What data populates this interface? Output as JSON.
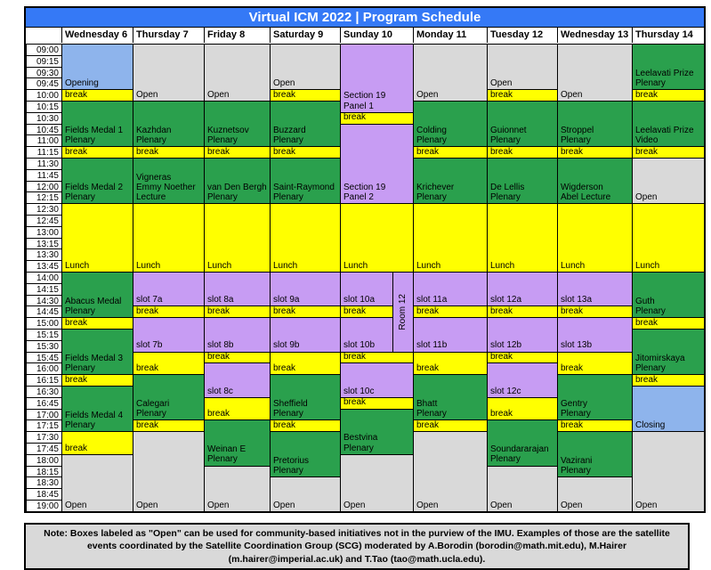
{
  "title": "Virtual ICM 2022 | Program Schedule",
  "palette": {
    "title_bar": "#3579f6",
    "blue": "#8eb4ec",
    "green": "#2aa04d",
    "yellow": "#ffff00",
    "purple": "#c79cf3",
    "gray": "#d9d9d9",
    "note_bg": "#d9d9d9",
    "border": "#000000"
  },
  "days": [
    "Wednesday 6",
    "Thursday 7",
    "Friday 8",
    "Saturday 9",
    "Sunday 10",
    "Monday 11",
    "Tuesday 12",
    "Wednesday 13",
    "Thursday 14"
  ],
  "times": [
    "09:00",
    "09:15",
    "09:30",
    "09:45",
    "10:00",
    "10:15",
    "10:30",
    "10:45",
    "11:00",
    "11:15",
    "11:30",
    "11:45",
    "12:00",
    "12:15",
    "12:30",
    "12:45",
    "13:00",
    "13:15",
    "13:30",
    "13:45",
    "14:00",
    "14:15",
    "14:30",
    "14:45",
    "15:00",
    "15:15",
    "15:30",
    "15:45",
    "16:00",
    "16:15",
    "16:30",
    "16:45",
    "17:00",
    "17:15",
    "17:30",
    "17:45",
    "18:00",
    "18:15",
    "18:30",
    "18:45",
    "19:00"
  ],
  "events": [
    {
      "day": 0,
      "start": "09:00",
      "end": "10:00",
      "color": "blue",
      "label": "Opening"
    },
    {
      "day": 0,
      "start": "10:00",
      "end": "10:15",
      "color": "yellow",
      "label": "break"
    },
    {
      "day": 0,
      "start": "10:15",
      "end": "11:15",
      "color": "green",
      "label": "Fields Medal 1\nPlenary"
    },
    {
      "day": 0,
      "start": "11:15",
      "end": "11:30",
      "color": "yellow",
      "label": "break"
    },
    {
      "day": 0,
      "start": "11:30",
      "end": "12:30",
      "color": "green",
      "label": "Fields Medal 2\nPlenary"
    },
    {
      "day": 0,
      "start": "12:30",
      "end": "14:00",
      "color": "yellow",
      "label": "Lunch"
    },
    {
      "day": 0,
      "start": "14:00",
      "end": "15:00",
      "color": "green",
      "label": "Abacus Medal\nPlenary"
    },
    {
      "day": 0,
      "start": "15:00",
      "end": "15:15",
      "color": "yellow",
      "label": "break"
    },
    {
      "day": 0,
      "start": "15:15",
      "end": "16:15",
      "color": "green",
      "label": "Fields Medal 3\nPlenary"
    },
    {
      "day": 0,
      "start": "16:15",
      "end": "16:30",
      "color": "yellow",
      "label": "break"
    },
    {
      "day": 0,
      "start": "16:30",
      "end": "17:30",
      "color": "green",
      "label": "Fields Medal 4\nPlenary"
    },
    {
      "day": 0,
      "start": "17:30",
      "end": "18:00",
      "color": "yellow",
      "label": "break"
    },
    {
      "day": 0,
      "start": "18:00",
      "end": "19:15",
      "color": "gray",
      "label": "Open"
    },
    {
      "day": 1,
      "start": "09:00",
      "end": "10:15",
      "color": "gray",
      "label": "Open"
    },
    {
      "day": 1,
      "start": "10:15",
      "end": "11:15",
      "color": "green",
      "label": "Kazhdan\nPlenary"
    },
    {
      "day": 1,
      "start": "11:15",
      "end": "11:30",
      "color": "yellow",
      "label": "break"
    },
    {
      "day": 1,
      "start": "11:30",
      "end": "12:30",
      "color": "green",
      "label": "Vigneras\nEmmy Noether\nLecture"
    },
    {
      "day": 1,
      "start": "12:30",
      "end": "14:00",
      "color": "yellow",
      "label": "Lunch"
    },
    {
      "day": 1,
      "start": "14:00",
      "end": "14:45",
      "color": "purple",
      "label": "slot 7a"
    },
    {
      "day": 1,
      "start": "14:45",
      "end": "15:00",
      "color": "yellow",
      "label": "break"
    },
    {
      "day": 1,
      "start": "15:00",
      "end": "15:45",
      "color": "purple",
      "label": "slot 7b"
    },
    {
      "day": 1,
      "start": "15:45",
      "end": "16:15",
      "color": "yellow",
      "label": "break"
    },
    {
      "day": 1,
      "start": "16:15",
      "end": "17:15",
      "color": "green",
      "label": "Calegari\nPlenary"
    },
    {
      "day": 1,
      "start": "17:15",
      "end": "17:30",
      "color": "yellow",
      "label": "break"
    },
    {
      "day": 1,
      "start": "17:30",
      "end": "19:15",
      "color": "gray",
      "label": "Open"
    },
    {
      "day": 2,
      "start": "09:00",
      "end": "10:15",
      "color": "gray",
      "label": "Open"
    },
    {
      "day": 2,
      "start": "10:15",
      "end": "11:15",
      "color": "green",
      "label": "Kuznetsov\nPlenary"
    },
    {
      "day": 2,
      "start": "11:15",
      "end": "11:30",
      "color": "yellow",
      "label": "break"
    },
    {
      "day": 2,
      "start": "11:30",
      "end": "12:30",
      "color": "green",
      "label": "van Den Bergh\nPlenary"
    },
    {
      "day": 2,
      "start": "12:30",
      "end": "14:00",
      "color": "yellow",
      "label": "Lunch"
    },
    {
      "day": 2,
      "start": "14:00",
      "end": "14:45",
      "color": "purple",
      "label": "slot 8a"
    },
    {
      "day": 2,
      "start": "14:45",
      "end": "15:00",
      "color": "yellow",
      "label": "break"
    },
    {
      "day": 2,
      "start": "15:00",
      "end": "15:45",
      "color": "purple",
      "label": "slot 8b"
    },
    {
      "day": 2,
      "start": "15:45",
      "end": "16:00",
      "color": "yellow",
      "label": "break"
    },
    {
      "day": 2,
      "start": "16:00",
      "end": "16:45",
      "color": "purple",
      "label": "slot 8c"
    },
    {
      "day": 2,
      "start": "16:45",
      "end": "17:15",
      "color": "yellow",
      "label": "break"
    },
    {
      "day": 2,
      "start": "17:15",
      "end": "18:15",
      "color": "green",
      "label": "Weinan E\nPlenary"
    },
    {
      "day": 2,
      "start": "18:15",
      "end": "19:15",
      "color": "gray",
      "label": "Open"
    },
    {
      "day": 3,
      "start": "09:00",
      "end": "10:00",
      "color": "gray",
      "label": "Open"
    },
    {
      "day": 3,
      "start": "10:00",
      "end": "10:15",
      "color": "yellow",
      "label": "break"
    },
    {
      "day": 3,
      "start": "10:15",
      "end": "11:15",
      "color": "green",
      "label": "Buzzard\nPlenary"
    },
    {
      "day": 3,
      "start": "11:15",
      "end": "11:30",
      "color": "yellow",
      "label": "break"
    },
    {
      "day": 3,
      "start": "11:30",
      "end": "12:30",
      "color": "green",
      "label": "Saint-Raymond\nPlenary"
    },
    {
      "day": 3,
      "start": "12:30",
      "end": "14:00",
      "color": "yellow",
      "label": "Lunch"
    },
    {
      "day": 3,
      "start": "14:00",
      "end": "14:45",
      "color": "purple",
      "label": "slot 9a"
    },
    {
      "day": 3,
      "start": "14:45",
      "end": "15:00",
      "color": "yellow",
      "label": "break"
    },
    {
      "day": 3,
      "start": "15:00",
      "end": "15:45",
      "color": "purple",
      "label": "slot 9b"
    },
    {
      "day": 3,
      "start": "15:45",
      "end": "16:15",
      "color": "yellow",
      "label": "break"
    },
    {
      "day": 3,
      "start": "16:15",
      "end": "17:15",
      "color": "green",
      "label": "Sheffield\nPlenary"
    },
    {
      "day": 3,
      "start": "17:15",
      "end": "17:30",
      "color": "yellow",
      "label": "break"
    },
    {
      "day": 3,
      "start": "17:30",
      "end": "18:30",
      "color": "green",
      "label": "Pretorius\nPlenary"
    },
    {
      "day": 3,
      "start": "18:30",
      "end": "19:15",
      "color": "gray",
      "label": "Open"
    },
    {
      "day": 4,
      "start": "09:00",
      "end": "10:30",
      "color": "purple",
      "label": "Section 19\nPanel 1"
    },
    {
      "day": 4,
      "start": "10:30",
      "end": "10:45",
      "color": "yellow",
      "label": "break"
    },
    {
      "day": 4,
      "start": "10:45",
      "end": "12:30",
      "color": "purple",
      "label": "Section 19\nPanel 2"
    },
    {
      "day": 4,
      "start": "12:30",
      "end": "14:00",
      "color": "yellow",
      "label": "Lunch"
    },
    {
      "day": 4,
      "start": "14:00",
      "end": "14:45",
      "color": "purple",
      "label": "slot 10a",
      "sub": "left"
    },
    {
      "day": 4,
      "start": "14:45",
      "end": "15:00",
      "color": "yellow",
      "label": "break",
      "sub": "left"
    },
    {
      "day": 4,
      "start": "15:00",
      "end": "15:45",
      "color": "purple",
      "label": "slot 10b",
      "sub": "left"
    },
    {
      "day": 4,
      "start": "14:00",
      "end": "15:45",
      "color": "purple",
      "label": "Room 12",
      "sub": "right",
      "vertical": true
    },
    {
      "day": 4,
      "start": "15:45",
      "end": "16:00",
      "color": "yellow",
      "label": "break"
    },
    {
      "day": 4,
      "start": "16:00",
      "end": "16:45",
      "color": "purple",
      "label": "slot 10c"
    },
    {
      "day": 4,
      "start": "16:45",
      "end": "17:00",
      "color": "yellow",
      "label": "break"
    },
    {
      "day": 4,
      "start": "17:00",
      "end": "18:00",
      "color": "green",
      "label": "Bestvina\nPlenary"
    },
    {
      "day": 4,
      "start": "18:00",
      "end": "19:15",
      "color": "gray",
      "label": "Open"
    },
    {
      "day": 5,
      "start": "09:00",
      "end": "10:15",
      "color": "gray",
      "label": "Open"
    },
    {
      "day": 5,
      "start": "10:15",
      "end": "11:15",
      "color": "green",
      "label": "Colding\nPlenary"
    },
    {
      "day": 5,
      "start": "11:15",
      "end": "11:30",
      "color": "yellow",
      "label": "break"
    },
    {
      "day": 5,
      "start": "11:30",
      "end": "12:30",
      "color": "green",
      "label": "Krichever\nPlenary"
    },
    {
      "day": 5,
      "start": "12:30",
      "end": "14:00",
      "color": "yellow",
      "label": "Lunch"
    },
    {
      "day": 5,
      "start": "14:00",
      "end": "14:45",
      "color": "purple",
      "label": "slot 11a"
    },
    {
      "day": 5,
      "start": "14:45",
      "end": "15:00",
      "color": "yellow",
      "label": "break"
    },
    {
      "day": 5,
      "start": "15:00",
      "end": "15:45",
      "color": "purple",
      "label": "slot 11b"
    },
    {
      "day": 5,
      "start": "15:45",
      "end": "16:15",
      "color": "yellow",
      "label": "break"
    },
    {
      "day": 5,
      "start": "16:15",
      "end": "17:15",
      "color": "green",
      "label": "Bhatt\nPlenary"
    },
    {
      "day": 5,
      "start": "17:15",
      "end": "17:30",
      "color": "yellow",
      "label": "break"
    },
    {
      "day": 5,
      "start": "17:30",
      "end": "19:15",
      "color": "gray",
      "label": "Open"
    },
    {
      "day": 6,
      "start": "09:00",
      "end": "10:00",
      "color": "gray",
      "label": "Open"
    },
    {
      "day": 6,
      "start": "10:00",
      "end": "10:15",
      "color": "yellow",
      "label": "break"
    },
    {
      "day": 6,
      "start": "10:15",
      "end": "11:15",
      "color": "green",
      "label": "Guionnet\nPlenary"
    },
    {
      "day": 6,
      "start": "11:15",
      "end": "11:30",
      "color": "yellow",
      "label": "break"
    },
    {
      "day": 6,
      "start": "11:30",
      "end": "12:30",
      "color": "green",
      "label": "De Lellis\nPlenary"
    },
    {
      "day": 6,
      "start": "12:30",
      "end": "14:00",
      "color": "yellow",
      "label": "Lunch"
    },
    {
      "day": 6,
      "start": "14:00",
      "end": "14:45",
      "color": "purple",
      "label": "slot 12a"
    },
    {
      "day": 6,
      "start": "14:45",
      "end": "15:00",
      "color": "yellow",
      "label": "break"
    },
    {
      "day": 6,
      "start": "15:00",
      "end": "15:45",
      "color": "purple",
      "label": "slot 12b"
    },
    {
      "day": 6,
      "start": "15:45",
      "end": "16:00",
      "color": "yellow",
      "label": "break"
    },
    {
      "day": 6,
      "start": "16:00",
      "end": "16:45",
      "color": "purple",
      "label": "slot 12c"
    },
    {
      "day": 6,
      "start": "16:45",
      "end": "17:15",
      "color": "yellow",
      "label": "break"
    },
    {
      "day": 6,
      "start": "17:15",
      "end": "18:15",
      "color": "green",
      "label": "Soundararajan\nPlenary"
    },
    {
      "day": 6,
      "start": "18:15",
      "end": "19:15",
      "color": "gray",
      "label": "Open"
    },
    {
      "day": 7,
      "start": "09:00",
      "end": "10:15",
      "color": "gray",
      "label": "Open"
    },
    {
      "day": 7,
      "start": "10:15",
      "end": "11:15",
      "color": "green",
      "label": "Stroppel\nPlenary"
    },
    {
      "day": 7,
      "start": "11:15",
      "end": "11:30",
      "color": "yellow",
      "label": "break"
    },
    {
      "day": 7,
      "start": "11:30",
      "end": "12:30",
      "color": "green",
      "label": "Wigderson\nAbel Lecture"
    },
    {
      "day": 7,
      "start": "12:30",
      "end": "14:00",
      "color": "yellow",
      "label": "Lunch"
    },
    {
      "day": 7,
      "start": "14:00",
      "end": "14:45",
      "color": "purple",
      "label": "slot 13a"
    },
    {
      "day": 7,
      "start": "14:45",
      "end": "15:00",
      "color": "yellow",
      "label": "break"
    },
    {
      "day": 7,
      "start": "15:00",
      "end": "15:45",
      "color": "purple",
      "label": "slot 13b"
    },
    {
      "day": 7,
      "start": "15:45",
      "end": "16:15",
      "color": "yellow",
      "label": "break"
    },
    {
      "day": 7,
      "start": "16:15",
      "end": "17:15",
      "color": "green",
      "label": "Gentry\nPlenary"
    },
    {
      "day": 7,
      "start": "17:15",
      "end": "17:30",
      "color": "yellow",
      "label": "break"
    },
    {
      "day": 7,
      "start": "17:30",
      "end": "18:30",
      "color": "green",
      "label": "Vazirani\nPlenary"
    },
    {
      "day": 7,
      "start": "18:30",
      "end": "19:15",
      "color": "gray",
      "label": "Open"
    },
    {
      "day": 8,
      "start": "09:00",
      "end": "10:00",
      "color": "green",
      "label": "Leelavati Prize\nPlenary"
    },
    {
      "day": 8,
      "start": "10:00",
      "end": "10:15",
      "color": "yellow",
      "label": "break"
    },
    {
      "day": 8,
      "start": "10:15",
      "end": "11:15",
      "color": "green",
      "label": "Leelavati Prize\nVideo"
    },
    {
      "day": 8,
      "start": "11:15",
      "end": "11:30",
      "color": "yellow",
      "label": "break"
    },
    {
      "day": 8,
      "start": "11:30",
      "end": "12:30",
      "color": "gray",
      "label": "Open"
    },
    {
      "day": 8,
      "start": "12:30",
      "end": "14:00",
      "color": "yellow",
      "label": "Lunch"
    },
    {
      "day": 8,
      "start": "14:00",
      "end": "15:00",
      "color": "green",
      "label": "Guth\nPlenary"
    },
    {
      "day": 8,
      "start": "15:00",
      "end": "15:15",
      "color": "yellow",
      "label": "break"
    },
    {
      "day": 8,
      "start": "15:15",
      "end": "16:15",
      "color": "green",
      "label": "Jitomirskaya\nPlenary"
    },
    {
      "day": 8,
      "start": "16:15",
      "end": "16:30",
      "color": "yellow",
      "label": "break"
    },
    {
      "day": 8,
      "start": "16:30",
      "end": "17:30",
      "color": "blue",
      "label": "Closing"
    },
    {
      "day": 8,
      "start": "17:30",
      "end": "19:15",
      "color": "gray",
      "label": "Open"
    }
  ],
  "note": "Note: Boxes labeled as \"Open\" can be used for community-based initiatives not in the purview of the IMU. Examples of those are the satellite events coordinated by the Satellite Coordination Group (SCG) moderated by A.Borodin (borodin@math.mit.edu), M.Hairer (m.hairer@imperial.ac.uk) and T.Tao (tao@math.ucla.edu)."
}
